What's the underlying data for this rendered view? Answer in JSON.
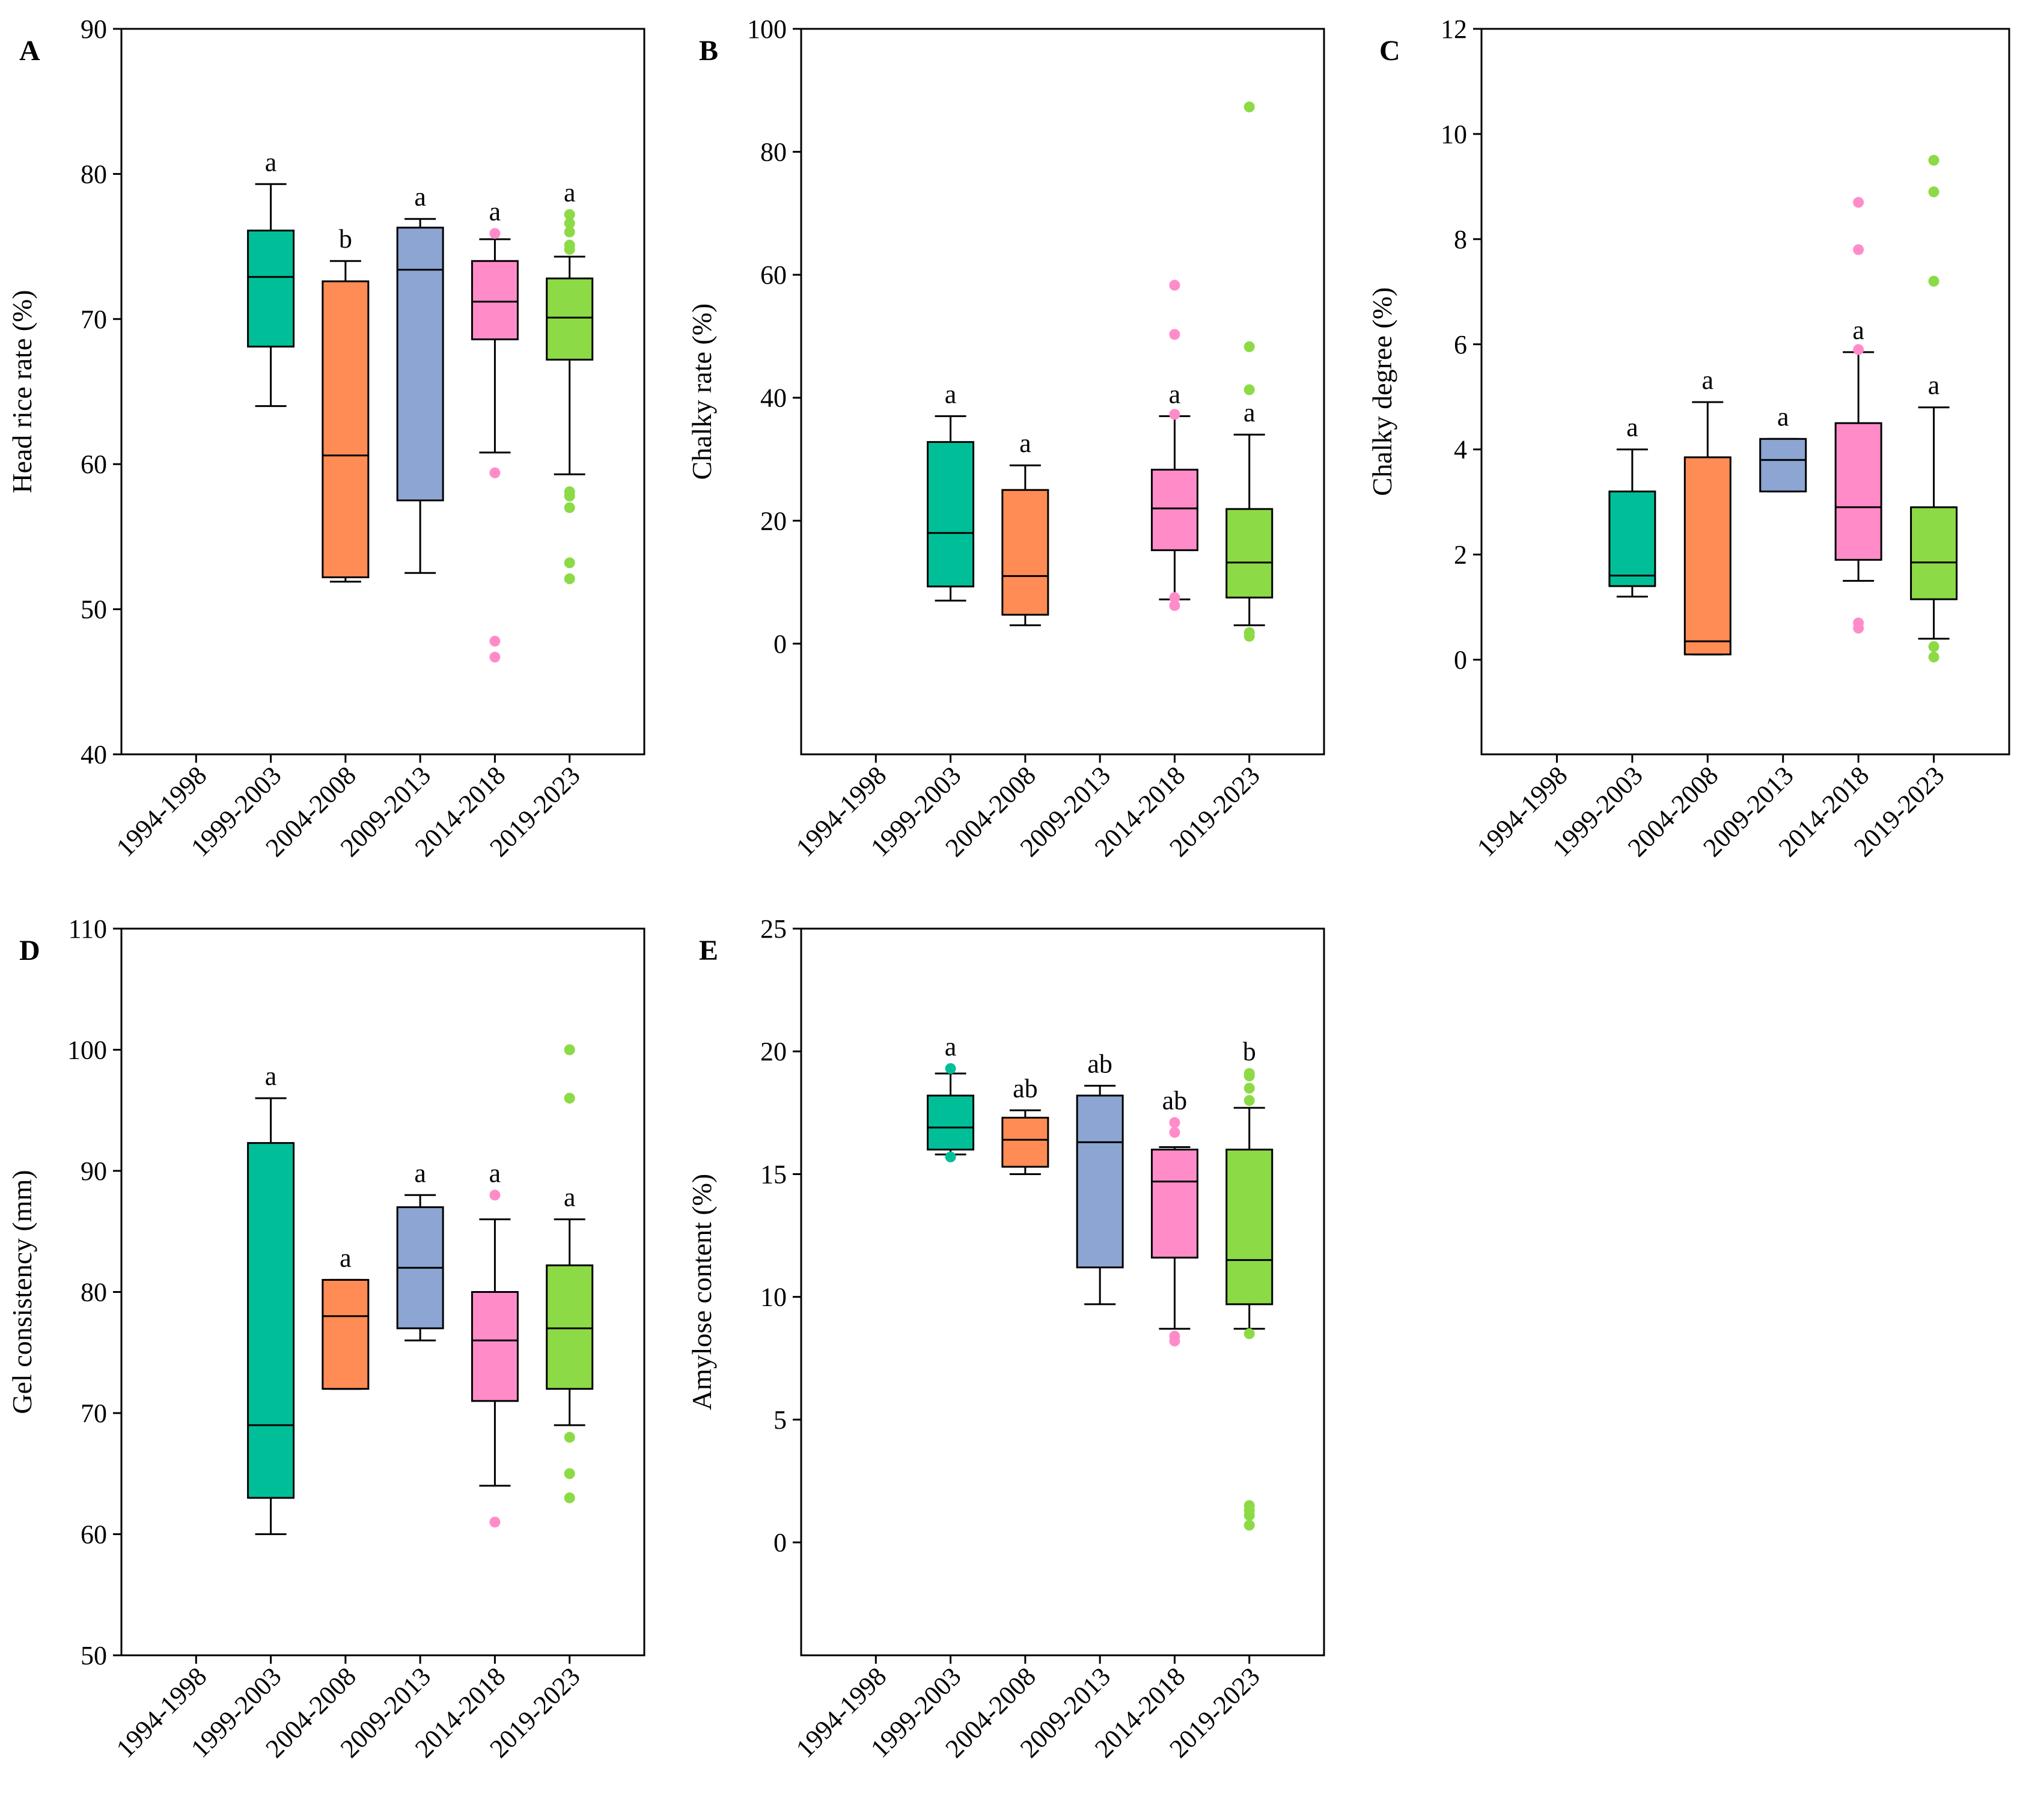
{
  "figure": {
    "categories": [
      "1994-1998",
      "1999-2003",
      "2004-2008",
      "2009-2013",
      "2014-2018",
      "2019-2023"
    ],
    "colors": {
      "1999-2003": "#00BF98",
      "2004-2008": "#FF8C55",
      "2009-2013": "#8CA5D2",
      "2014-2018": "#FF8CC8",
      "2019-2023": "#8CDA46"
    }
  },
  "chart_data": [
    {
      "panel": "A",
      "type": "box",
      "ylabel": "Head rice rate (%)",
      "ylim": [
        40,
        90
      ],
      "yticks": [
        40,
        50,
        60,
        70,
        80,
        90
      ],
      "categories": [
        "1994-1998",
        "1999-2003",
        "2004-2008",
        "2009-2013",
        "2014-2018",
        "2019-2023"
      ],
      "boxes": [
        {
          "category": "1999-2003",
          "whisker_low": 64.0,
          "q1": 68.1,
          "median": 72.9,
          "q3": 76.1,
          "whisker_high": 79.3,
          "outliers": [],
          "sig": "a"
        },
        {
          "category": "2004-2008",
          "whisker_low": 51.9,
          "q1": 52.2,
          "median": 60.6,
          "q3": 72.6,
          "whisker_high": 74.0,
          "outliers": [],
          "sig": "b"
        },
        {
          "category": "2009-2013",
          "whisker_low": 52.5,
          "q1": 57.5,
          "median": 73.4,
          "q3": 76.3,
          "whisker_high": 76.9,
          "outliers": [],
          "sig": "a"
        },
        {
          "category": "2014-2018",
          "whisker_low": 60.8,
          "q1": 68.6,
          "median": 71.2,
          "q3": 74.0,
          "whisker_high": 75.5,
          "outliers": [
            75.9,
            59.4,
            47.8,
            46.7
          ],
          "sig": "a"
        },
        {
          "category": "2019-2023",
          "whisker_low": 59.3,
          "q1": 67.2,
          "median": 70.1,
          "q3": 72.8,
          "whisker_high": 74.3,
          "outliers": [
            77.2,
            76.6,
            76.0,
            75.1,
            74.8,
            58.1,
            57.8,
            57.0,
            53.2,
            52.1
          ],
          "sig": "a"
        }
      ]
    },
    {
      "panel": "B",
      "type": "box",
      "ylabel": "Chalky rate (%)",
      "ylim": [
        -18,
        100
      ],
      "yticks": [
        0,
        20,
        40,
        60,
        80,
        100
      ],
      "categories": [
        "1994-1998",
        "1999-2003",
        "2004-2008",
        "2009-2013",
        "2014-2018",
        "2019-2023"
      ],
      "boxes": [
        {
          "category": "1999-2003",
          "whisker_low": 7.0,
          "q1": 9.3,
          "median": 18.0,
          "q3": 32.8,
          "whisker_high": 37.0,
          "outliers": [],
          "sig": "a"
        },
        {
          "category": "2004-2008",
          "whisker_low": 3.0,
          "q1": 4.7,
          "median": 11.0,
          "q3": 25.0,
          "whisker_high": 29.0,
          "outliers": [],
          "sig": "a"
        },
        {
          "category": "2014-2018",
          "whisker_low": 7.2,
          "q1": 15.2,
          "median": 22.0,
          "q3": 28.3,
          "whisker_high": 37.0,
          "outliers": [
            58.3,
            50.3,
            37.3,
            7.5,
            6.2
          ],
          "sig": "a"
        },
        {
          "category": "2019-2023",
          "whisker_low": 3.0,
          "q1": 7.5,
          "median": 13.2,
          "q3": 21.9,
          "whisker_high": 34.0,
          "outliers": [
            87.3,
            48.3,
            41.3,
            1.8,
            1.2
          ],
          "sig": "a"
        }
      ]
    },
    {
      "panel": "C",
      "type": "box",
      "ylabel": "Chalky degree (%)",
      "ylim": [
        -1.8,
        12
      ],
      "yticks": [
        0,
        2,
        4,
        6,
        8,
        10,
        12
      ],
      "categories": [
        "1994-1998",
        "1999-2003",
        "2004-2008",
        "2009-2013",
        "2014-2018",
        "2019-2023"
      ],
      "boxes": [
        {
          "category": "1999-2003",
          "whisker_low": 1.2,
          "q1": 1.4,
          "median": 1.6,
          "q3": 3.2,
          "whisker_high": 4.0,
          "outliers": [],
          "sig": "a"
        },
        {
          "category": "2004-2008",
          "whisker_low": 0.1,
          "q1": 0.1,
          "median": 0.35,
          "q3": 3.85,
          "whisker_high": 4.9,
          "outliers": [],
          "sig": "a"
        },
        {
          "category": "2009-2013",
          "whisker_low": 3.2,
          "q1": 3.2,
          "median": 3.8,
          "q3": 4.2,
          "whisker_high": 4.2,
          "outliers": [],
          "sig": "a"
        },
        {
          "category": "2014-2018",
          "whisker_low": 1.5,
          "q1": 1.9,
          "median": 2.9,
          "q3": 4.5,
          "whisker_high": 5.85,
          "outliers": [
            8.7,
            7.8,
            5.9,
            0.7,
            0.6
          ],
          "sig": "a"
        },
        {
          "category": "2019-2023",
          "whisker_low": 0.4,
          "q1": 1.15,
          "median": 1.85,
          "q3": 2.9,
          "whisker_high": 4.8,
          "outliers": [
            9.5,
            8.9,
            7.2,
            0.25,
            0.05
          ],
          "sig": "a"
        }
      ]
    },
    {
      "panel": "D",
      "type": "box",
      "ylabel": "Gel consistency (mm)",
      "ylim": [
        50,
        110
      ],
      "yticks": [
        50,
        60,
        70,
        80,
        90,
        100,
        110
      ],
      "categories": [
        "1994-1998",
        "1999-2003",
        "2004-2008",
        "2009-2013",
        "2014-2018",
        "2019-2023"
      ],
      "boxes": [
        {
          "category": "1999-2003",
          "whisker_low": 60,
          "q1": 63,
          "median": 69,
          "q3": 92.3,
          "whisker_high": 96,
          "outliers": [],
          "sig": "a"
        },
        {
          "category": "2004-2008",
          "whisker_low": 72,
          "q1": 72,
          "median": 78,
          "q3": 81,
          "whisker_high": 81,
          "outliers": [],
          "sig": "a"
        },
        {
          "category": "2009-2013",
          "whisker_low": 76,
          "q1": 77,
          "median": 82,
          "q3": 87,
          "whisker_high": 88,
          "outliers": [],
          "sig": "a"
        },
        {
          "category": "2014-2018",
          "whisker_low": 64,
          "q1": 71,
          "median": 76,
          "q3": 80,
          "whisker_high": 86,
          "outliers": [
            88,
            61
          ],
          "sig": "a"
        },
        {
          "category": "2019-2023",
          "whisker_low": 69,
          "q1": 72,
          "median": 77,
          "q3": 82.2,
          "whisker_high": 86,
          "outliers": [
            100,
            96,
            68,
            65,
            63
          ],
          "sig": "a"
        }
      ]
    },
    {
      "panel": "E",
      "type": "box",
      "ylabel": "Amylose content (%)",
      "ylim": [
        -4.6,
        25
      ],
      "yticks": [
        0,
        5,
        10,
        15,
        20,
        25
      ],
      "categories": [
        "1994-1998",
        "1999-2003",
        "2004-2008",
        "2009-2013",
        "2014-2018",
        "2019-2023"
      ],
      "boxes": [
        {
          "category": "1999-2003",
          "whisker_low": 15.8,
          "q1": 16.0,
          "median": 16.9,
          "q3": 18.2,
          "whisker_high": 19.1,
          "outliers": [
            19.3,
            15.7
          ],
          "sig": "a"
        },
        {
          "category": "2004-2008",
          "whisker_low": 15.0,
          "q1": 15.3,
          "median": 16.4,
          "q3": 17.3,
          "whisker_high": 17.6,
          "outliers": [],
          "sig": "ab"
        },
        {
          "category": "2009-2013",
          "whisker_low": 9.7,
          "q1": 11.2,
          "median": 16.3,
          "q3": 18.2,
          "whisker_high": 18.6,
          "outliers": [],
          "sig": "ab"
        },
        {
          "category": "2014-2018",
          "whisker_low": 8.7,
          "q1": 11.6,
          "median": 14.7,
          "q3": 16.0,
          "whisker_high": 16.1,
          "outliers": [
            17.1,
            16.7,
            8.4,
            8.2
          ],
          "sig": "ab"
        },
        {
          "category": "2019-2023",
          "whisker_low": 8.7,
          "q1": 9.7,
          "median": 11.5,
          "q3": 16.0,
          "whisker_high": 17.7,
          "outliers": [
            19.1,
            19.0,
            18.5,
            18.0,
            8.5,
            1.5,
            1.3,
            1.1,
            0.7
          ],
          "sig": "b"
        }
      ]
    }
  ]
}
